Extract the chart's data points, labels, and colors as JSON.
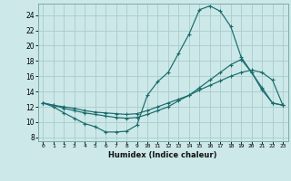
{
  "xlabel": "Humidex (Indice chaleur)",
  "bg_color": "#cce8e8",
  "grid_color": "#aacccc",
  "line_color": "#1a6b6b",
  "xlim": [
    -0.5,
    23.5
  ],
  "ylim": [
    7.5,
    25.5
  ],
  "xticks": [
    0,
    1,
    2,
    3,
    4,
    5,
    6,
    7,
    8,
    9,
    10,
    11,
    12,
    13,
    14,
    15,
    16,
    17,
    18,
    19,
    20,
    21,
    22,
    23
  ],
  "yticks": [
    8,
    10,
    12,
    14,
    16,
    18,
    20,
    22,
    24
  ],
  "curve1_x": [
    0,
    1,
    2,
    3,
    4,
    5,
    6,
    7,
    8,
    9,
    10,
    11,
    12,
    13,
    14,
    15,
    16,
    17,
    18,
    19,
    20,
    21,
    22,
    23
  ],
  "curve1_y": [
    12.5,
    12.0,
    11.2,
    10.5,
    9.8,
    9.4,
    8.7,
    8.7,
    8.8,
    9.6,
    13.5,
    15.3,
    16.5,
    19.0,
    21.5,
    24.7,
    25.2,
    24.5,
    22.5,
    18.5,
    16.5,
    14.2,
    12.5,
    12.2
  ],
  "curve2_x": [
    0,
    1,
    2,
    3,
    4,
    5,
    6,
    7,
    8,
    9,
    10,
    11,
    12,
    13,
    14,
    15,
    16,
    17,
    18,
    19,
    20,
    21,
    22,
    23
  ],
  "curve2_y": [
    12.5,
    12.2,
    12.0,
    11.8,
    11.5,
    11.3,
    11.2,
    11.1,
    11.0,
    11.1,
    11.5,
    12.0,
    12.5,
    13.0,
    13.5,
    14.2,
    14.8,
    15.4,
    16.0,
    16.5,
    16.8,
    16.5,
    15.5,
    12.2
  ],
  "curve3_x": [
    0,
    1,
    2,
    3,
    4,
    5,
    6,
    7,
    8,
    9,
    10,
    11,
    12,
    13,
    14,
    15,
    16,
    17,
    18,
    19,
    20,
    21,
    22,
    23
  ],
  "curve3_y": [
    12.5,
    12.2,
    11.8,
    11.5,
    11.2,
    11.0,
    10.8,
    10.6,
    10.5,
    10.6,
    11.0,
    11.5,
    12.0,
    12.8,
    13.5,
    14.5,
    15.5,
    16.5,
    17.5,
    18.2,
    16.5,
    14.5,
    12.5,
    12.2
  ]
}
